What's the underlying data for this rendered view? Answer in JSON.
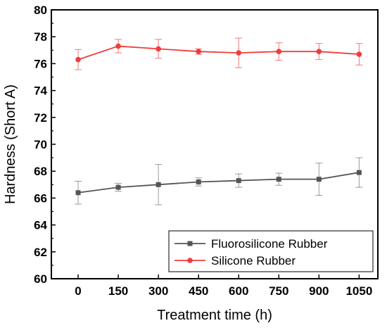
{
  "chart_data": {
    "type": "line",
    "xlabel": "Treatment time (h)",
    "ylabel": "Hardness (Short A)",
    "x": [
      0,
      150,
      300,
      450,
      600,
      750,
      900,
      1050
    ],
    "xticks": [
      0,
      150,
      300,
      450,
      600,
      750,
      900,
      1050
    ],
    "xlim": [
      -100,
      1120
    ],
    "ylim": [
      60,
      80
    ],
    "yticks": [
      60,
      62,
      64,
      66,
      68,
      70,
      72,
      74,
      76,
      78,
      80
    ],
    "grid": false,
    "legend_position": "bottom-right",
    "series": [
      {
        "name": "Fluorosilicone Rubber",
        "color": "#555555",
        "marker": "square",
        "values": [
          66.4,
          66.8,
          67.0,
          67.2,
          67.3,
          67.4,
          67.4,
          67.9
        ],
        "errors": [
          0.85,
          0.3,
          1.5,
          0.3,
          0.5,
          0.45,
          1.2,
          1.1
        ]
      },
      {
        "name": "Silicone Rubber",
        "color": "#f03c3c",
        "marker": "circle",
        "values": [
          76.3,
          77.3,
          77.1,
          76.9,
          76.8,
          76.9,
          76.9,
          76.7
        ],
        "errors": [
          0.75,
          0.5,
          0.7,
          0.2,
          1.1,
          0.65,
          0.6,
          0.8
        ]
      }
    ]
  }
}
